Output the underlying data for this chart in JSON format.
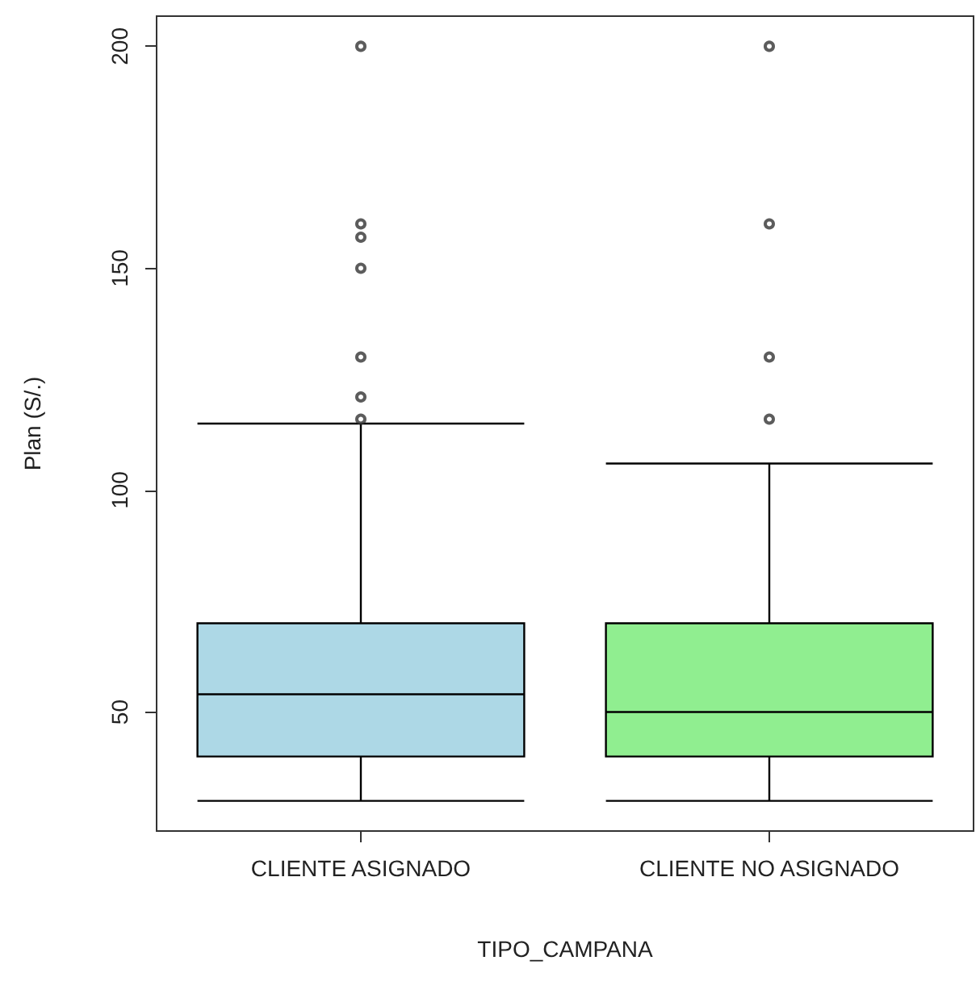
{
  "chart_data": {
    "type": "box",
    "xlabel": "TIPO_CAMPANA",
    "ylabel": "Plan (S/.)",
    "categories": [
      "CLIENTE ASIGNADO",
      "CLIENTE NO ASIGNADO"
    ],
    "colors": [
      "#add8e6",
      "#90ee90"
    ],
    "boxes": [
      {
        "low": 30,
        "q1": 40,
        "median": 54,
        "q3": 70,
        "high": 115,
        "outliers": [
          116,
          121,
          130,
          150,
          157,
          160,
          200
        ]
      },
      {
        "low": 30,
        "q1": 40,
        "median": 50,
        "q3": 70,
        "high": 106,
        "outliers": [
          116,
          130,
          160,
          200
        ]
      }
    ],
    "ylim": [
      23.2,
      206.8
    ],
    "yticks": [
      50,
      100,
      150,
      200
    ],
    "grid": false
  }
}
